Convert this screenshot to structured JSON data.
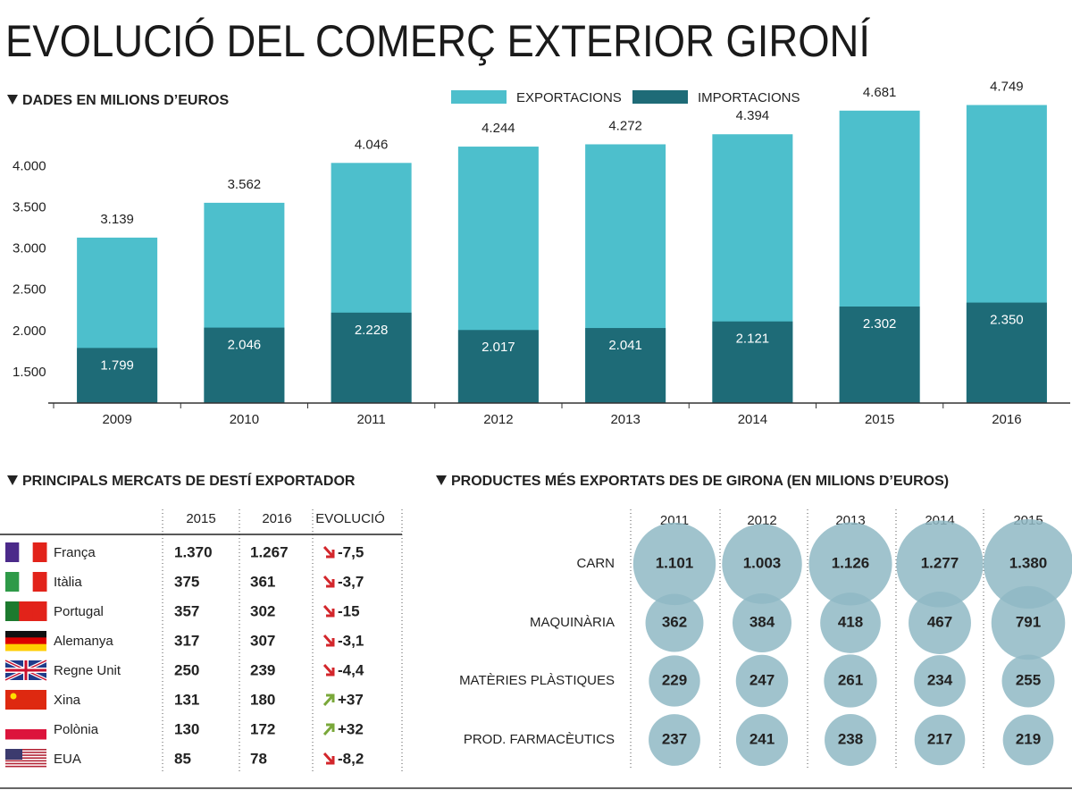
{
  "chart_data": [
    {
      "type": "bar",
      "title": "EVOLUCIÓ DEL COMERÇ EXTERIOR GIRONÍ",
      "subtitle": "DADES EN MILIONS D’EUROS",
      "categories": [
        "2009",
        "2010",
        "2011",
        "2012",
        "2013",
        "2014",
        "2015",
        "2016"
      ],
      "series": [
        {
          "name": "EXPORTACIONS",
          "color": "#4dbfcc",
          "values": [
            3139,
            3562,
            4046,
            4244,
            4272,
            4394,
            4681,
            4749
          ],
          "value_labels": [
            "3.139",
            "3.562",
            "4.046",
            "4.244",
            "4.272",
            "4.394",
            "4.681",
            "4.749"
          ]
        },
        {
          "name": "IMPORTACIONS",
          "color": "#1e6b77",
          "values": [
            1799,
            2046,
            2228,
            2017,
            2041,
            2121,
            2302,
            2350
          ],
          "value_labels": [
            "1.799",
            "2.046",
            "2.228",
            "2.017",
            "2.041",
            "2.121",
            "2.302",
            "2.350"
          ]
        }
      ],
      "ylim": [
        1130,
        4950
      ],
      "yticks": [
        {
          "value": 1500,
          "label": "1.500"
        },
        {
          "value": 2000,
          "label": "2.000"
        },
        {
          "value": 2500,
          "label": "2.500"
        },
        {
          "value": 3000,
          "label": "3.000"
        },
        {
          "value": 3500,
          "label": "3.500"
        },
        {
          "value": 4000,
          "label": "4.000"
        }
      ]
    },
    {
      "type": "bubble",
      "title": "PRODUCTES MÉS EXPORTATS DES DE GIRONA (EN MILIONS D’EUROS)",
      "x": [
        "2011",
        "2012",
        "2013",
        "2014",
        "2015"
      ],
      "color": "#8fb9c4",
      "series": [
        {
          "name": "CARN",
          "values": [
            1101,
            1003,
            1126,
            1277,
            1380
          ],
          "value_labels": [
            "1.101",
            "1.003",
            "1.126",
            "1.277",
            "1.380"
          ]
        },
        {
          "name": "MAQUINÀRIA",
          "values": [
            362,
            384,
            418,
            467,
            791
          ]
        },
        {
          "name": "MATÈRIES PLÀSTIQUES",
          "values": [
            229,
            247,
            261,
            234,
            255
          ]
        },
        {
          "name": "PROD. FARMACÈUTICS",
          "values": [
            237,
            241,
            238,
            217,
            219
          ]
        }
      ]
    }
  ],
  "table": {
    "title": "PRINCIPALS MERCATS DE DESTÍ EXPORTADOR",
    "columns": [
      "2015",
      "2016",
      "EVOLUCIÓ"
    ],
    "rows": [
      [
        "França",
        "1.370",
        "1.267",
        "-7,5"
      ],
      [
        "Itàlia",
        "375",
        "361",
        "-3,7"
      ],
      [
        "Portugal",
        "357",
        "302",
        "-15"
      ],
      [
        "Alemanya",
        "317",
        "307",
        "-3,1"
      ],
      [
        "Regne Unit",
        "250",
        "239",
        "-4,4"
      ],
      [
        "Xina",
        "131",
        "180",
        "+37"
      ],
      [
        "Polònia",
        "130",
        "172",
        "+32"
      ],
      [
        "EUA",
        "85",
        "78",
        "-8,2"
      ]
    ]
  }
}
